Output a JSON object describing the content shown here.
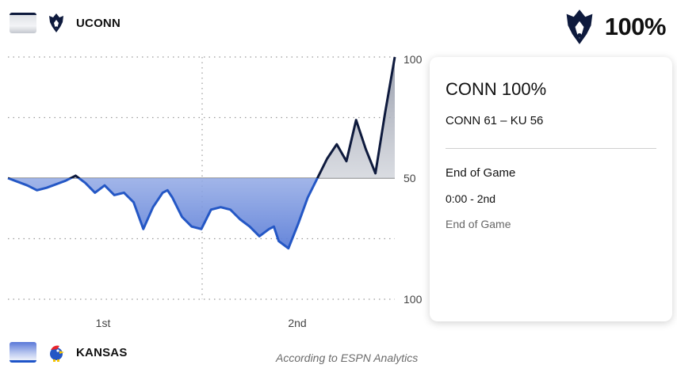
{
  "home": {
    "name": "UCONN",
    "logo": "uconn-husky-logo"
  },
  "away": {
    "name": "KANSAS",
    "logo": "kansas-jayhawk-logo"
  },
  "winner": {
    "pct": "100%",
    "logo": "uconn-husky-logo"
  },
  "credit": "According to ESPN Analytics",
  "card": {
    "headline": "CONN 100%",
    "score": "CONN 61 – KU 56",
    "period_label": "End of Game",
    "clock": "0:00 - 2nd",
    "status": "End of Game"
  },
  "colors": {
    "uconn": "#0e1a3d",
    "kansas": "#2457c5",
    "grid": "#9a9a9a"
  },
  "chart_data": {
    "type": "area",
    "x_labels": [
      "1st",
      "2nd"
    ],
    "y_tick_labels": [
      "100",
      "50",
      "100"
    ],
    "ylim": [
      0,
      100
    ],
    "grid": true,
    "series": [
      {
        "name": "UCONN",
        "x": [
          0,
          2,
          3,
          4,
          6,
          7,
          8,
          9,
          10,
          11,
          12,
          12.5,
          13,
          14,
          15,
          16,
          16.5,
          17,
          18,
          19,
          20,
          21,
          22,
          23,
          24,
          25,
          26,
          27,
          27.5,
          28,
          29,
          30,
          31,
          32,
          33,
          34,
          35,
          36,
          37,
          38,
          39,
          40
        ],
        "values": [
          50,
          47,
          45,
          46,
          49,
          51,
          48,
          44,
          47,
          43,
          44,
          42,
          40,
          29,
          38,
          44,
          45,
          42,
          34,
          30,
          29,
          37,
          38,
          37,
          33,
          30,
          26,
          29,
          30,
          24,
          21,
          31,
          42,
          50,
          58,
          64,
          57,
          74,
          62,
          52,
          77,
          100
        ]
      }
    ]
  }
}
